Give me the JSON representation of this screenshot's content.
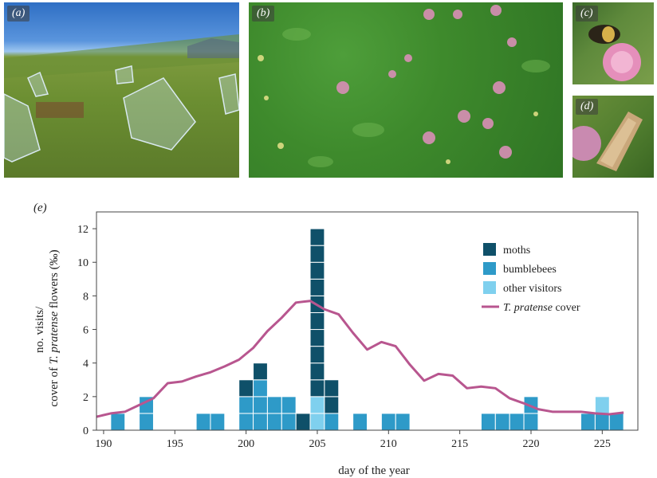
{
  "panels": {
    "a": "(a)",
    "b": "(b)",
    "c": "(c)",
    "d": "(d)",
    "e": "(e)"
  },
  "colors": {
    "moths": "#0f5069",
    "bumblebees": "#2e9ac8",
    "other": "#7fd0ee",
    "cover": "#b8568f"
  },
  "chart_data": {
    "type": "bar",
    "stacked": true,
    "xlabel": "day of the year",
    "ylabel_line1": "no. visits/",
    "ylabel_line2_pre": "cover of ",
    "ylabel_line2_italic": "T. pratense",
    "ylabel_line2_post": " flowers (‰)",
    "xlim": [
      189.5,
      227.5
    ],
    "ylim": [
      0,
      13
    ],
    "xticks": [
      190,
      195,
      200,
      205,
      210,
      215,
      220,
      225
    ],
    "yticks": [
      0,
      2,
      4,
      6,
      8,
      10,
      12
    ],
    "legend_position": "right",
    "legend": [
      {
        "key": "moths",
        "label": "moths",
        "kind": "bar"
      },
      {
        "key": "bumblebees",
        "label": "bumblebees",
        "kind": "bar"
      },
      {
        "key": "other",
        "label": "other visitors",
        "kind": "bar"
      },
      {
        "key": "cover",
        "label_italic": "T. pratense",
        "label_post": " cover",
        "kind": "line"
      }
    ],
    "days": [
      191,
      193,
      197,
      198,
      200,
      201,
      202,
      203,
      204,
      205,
      206,
      208,
      210,
      211,
      217,
      218,
      219,
      220,
      224,
      225,
      226
    ],
    "series": [
      {
        "name": "bumblebees",
        "key": "bumblebees",
        "values": [
          1,
          2,
          1,
          1,
          2,
          3,
          2,
          2,
          0,
          0,
          1,
          1,
          1,
          1,
          1,
          1,
          1,
          2,
          1,
          1,
          1
        ]
      },
      {
        "name": "other visitors",
        "key": "other",
        "values": [
          0,
          0,
          0,
          0,
          0,
          0,
          0,
          0,
          0,
          2,
          0,
          0,
          0,
          0,
          0,
          0,
          0,
          0,
          0,
          1,
          0
        ]
      },
      {
        "name": "moths",
        "key": "moths",
        "values": [
          0,
          0,
          0,
          0,
          1,
          1,
          0,
          0,
          1,
          10,
          2,
          0,
          0,
          0,
          0,
          0,
          0,
          0,
          0,
          0,
          0
        ]
      }
    ],
    "cover_line": {
      "name": "T. pratense cover",
      "x": [
        189.5,
        190.5,
        191.5,
        192.5,
        193.5,
        194.5,
        195.5,
        196.5,
        197.5,
        198.5,
        199.5,
        200.5,
        201.5,
        202.5,
        203.5,
        204.5,
        205.5,
        206.5,
        207.5,
        208.5,
        209.5,
        210.5,
        211.5,
        212.5,
        213.5,
        214.5,
        215.5,
        216.5,
        217.5,
        218.5,
        219.5,
        220.5,
        221.5,
        222.5,
        223.5,
        224.5,
        225.5,
        226.5
      ],
      "y": [
        0.8,
        1.0,
        1.1,
        1.5,
        1.9,
        2.8,
        2.9,
        3.2,
        3.45,
        3.8,
        4.2,
        4.9,
        5.9,
        6.7,
        7.6,
        7.7,
        7.2,
        6.9,
        5.8,
        4.8,
        5.25,
        5.0,
        3.9,
        2.95,
        3.35,
        3.25,
        2.5,
        2.6,
        2.5,
        1.9,
        1.6,
        1.25,
        1.1,
        1.1,
        1.1,
        1.0,
        0.95,
        1.05
      ]
    }
  }
}
